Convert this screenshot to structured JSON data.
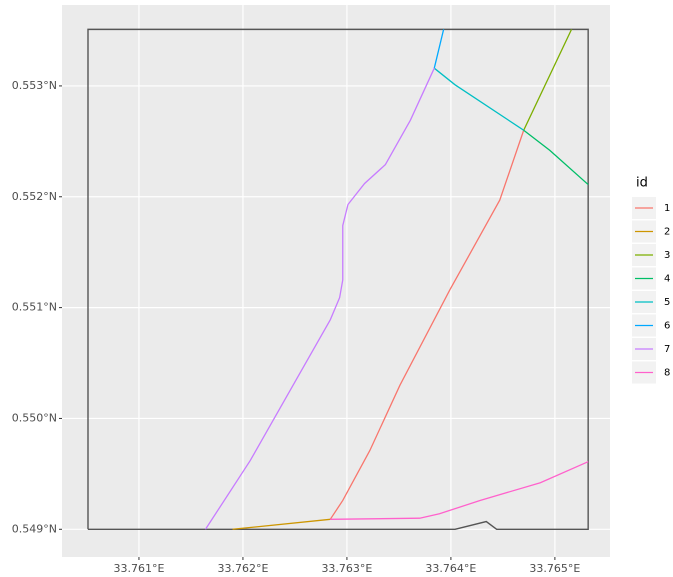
{
  "chart_data": {
    "type": "line",
    "xlim": [
      33.76026,
      33.76553
    ],
    "ylim": [
      0.54875,
      0.55373
    ],
    "xticks": [
      {
        "value": 33.761,
        "label": "33.761°E"
      },
      {
        "value": 33.762,
        "label": "33.762°E"
      },
      {
        "value": 33.763,
        "label": "33.763°E"
      },
      {
        "value": 33.764,
        "label": "33.764°E"
      },
      {
        "value": 33.765,
        "label": "33.765°E"
      }
    ],
    "yticks": [
      {
        "value": 0.549,
        "label": "0.549°N"
      },
      {
        "value": 0.55,
        "label": "0.550°N"
      },
      {
        "value": 0.551,
        "label": "0.551°N"
      },
      {
        "value": 0.552,
        "label": "0.552°N"
      },
      {
        "value": 0.553,
        "label": "0.553°N"
      }
    ],
    "grid": true,
    "legend_title": "id",
    "legend_position": "right",
    "boundary": {
      "color": "#555555",
      "x": [
        33.76051,
        33.76051,
        33.76532,
        33.76532,
        33.76444,
        33.76434,
        33.76404,
        33.76051
      ],
      "y": [
        0.549,
        0.55351,
        0.55351,
        0.549,
        0.549,
        0.54907,
        0.549,
        0.549
      ]
    },
    "series": [
      {
        "name": "1",
        "color": "#F8766D",
        "x": [
          33.76284,
          33.76296,
          33.76322,
          33.76351,
          33.76399,
          33.76447,
          33.7647
        ],
        "y": [
          0.54909,
          0.54926,
          0.54971,
          0.5503,
          0.55116,
          0.55197,
          0.5526
        ]
      },
      {
        "name": "2",
        "color": "#CD9600",
        "x": [
          33.7619,
          33.76284
        ],
        "y": [
          0.549,
          0.54909
        ]
      },
      {
        "name": "3",
        "color": "#7CAE00",
        "x": [
          33.7647,
          33.76516
        ],
        "y": [
          0.5526,
          0.55351
        ]
      },
      {
        "name": "4",
        "color": "#00BE67",
        "x": [
          33.7647,
          33.76495,
          33.76532
        ],
        "y": [
          0.5526,
          0.55242,
          0.55211
        ]
      },
      {
        "name": "5",
        "color": "#00BFC4",
        "x": [
          33.76384,
          33.76404,
          33.7647
        ],
        "y": [
          0.55316,
          0.55301,
          0.5526
        ]
      },
      {
        "name": "6",
        "color": "#00A9FF",
        "x": [
          33.76384,
          33.76393
        ],
        "y": [
          0.55316,
          0.55351
        ]
      },
      {
        "name": "7",
        "color": "#C77CFF",
        "x": [
          33.76164,
          33.76207,
          33.76284,
          33.76293,
          33.76296,
          33.76296,
          33.76301,
          33.76317,
          33.76337,
          33.76361,
          33.76384
        ],
        "y": [
          0.549,
          0.54962,
          0.55089,
          0.55109,
          0.55125,
          0.55174,
          0.55193,
          0.55212,
          0.55229,
          0.55269,
          0.55316
        ]
      },
      {
        "name": "8",
        "color": "#FF61CC",
        "x": [
          33.76284,
          33.7637,
          33.76389,
          33.76428,
          33.76486,
          33.76532
        ],
        "y": [
          0.54909,
          0.5491,
          0.54914,
          0.54926,
          0.54942,
          0.54961
        ]
      }
    ]
  }
}
